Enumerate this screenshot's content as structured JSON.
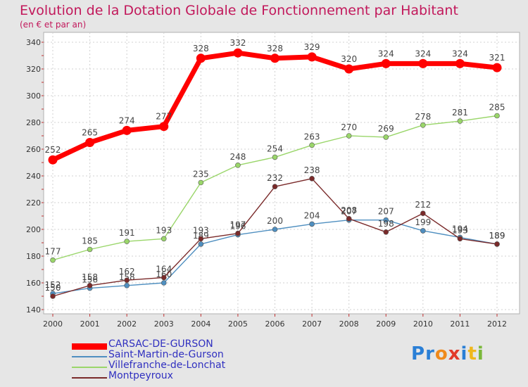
{
  "chart_data": {
    "type": "line",
    "title": "Evolution de la Dotation Globale de Fonctionnement par Habitant",
    "subtitle": "(en € et par an)",
    "xlabel": "",
    "ylabel": "",
    "categories": [
      "2000",
      "2001",
      "2002",
      "2003",
      "2004",
      "2005",
      "2006",
      "2007",
      "2008",
      "2009",
      "2010",
      "2011",
      "2012"
    ],
    "yticks": [
      140,
      160,
      180,
      200,
      220,
      240,
      260,
      280,
      300,
      320,
      340
    ],
    "ylim": [
      140,
      340
    ],
    "grid": true,
    "series": [
      {
        "name": "CARSAC-DE-GURSON",
        "color": "#ff0000",
        "values": [
          252,
          265,
          274,
          277,
          328,
          332,
          328,
          329,
          320,
          324,
          324,
          324,
          321
        ]
      },
      {
        "name": "Saint-Martin-de-Gurson",
        "color": "#4f8fc0",
        "values": [
          152,
          156,
          158,
          160,
          189,
          196,
          200,
          204,
          207,
          207,
          199,
          194,
          189
        ]
      },
      {
        "name": "Villefranche-de-Lonchat",
        "color": "#9ad66a",
        "values": [
          177,
          185,
          191,
          193,
          235,
          248,
          254,
          263,
          270,
          269,
          278,
          281,
          285
        ]
      },
      {
        "name": "Montpeyroux",
        "color": "#7a2a2a",
        "values": [
          150,
          158,
          162,
          164,
          193,
          197,
          232,
          238,
          208,
          198,
          212,
          193,
          189
        ]
      }
    ]
  },
  "logo": {
    "text": "Proxiti",
    "letters": [
      "P",
      "r",
      "o",
      "x",
      "i",
      "t",
      "i"
    ],
    "colors": [
      "#2a7fd6",
      "#2a7fd6",
      "#f08a1c",
      "#e23a2a",
      "#2a7fd6",
      "#f0b81c",
      "#7ab83a"
    ]
  }
}
